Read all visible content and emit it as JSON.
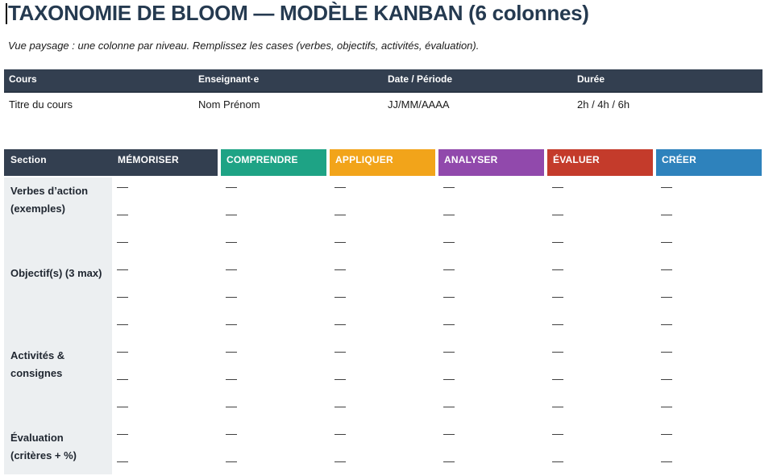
{
  "title": "TAXONOMIE DE BLOOM — MODÈLE KANBAN (6 colonnes)",
  "subtitle": "Vue paysage : une colonne par niveau. Remplissez les cases (verbes, objectifs, activités, évaluation).",
  "info_table": {
    "headers": [
      "Cours",
      "Enseignant·e",
      "Date / Période",
      "Durée"
    ],
    "values": [
      "Titre du cours",
      "Nom Prénom",
      "JJ/MM/AAAA",
      "2h / 4h / 6h"
    ]
  },
  "kanban": {
    "section_header": "Section",
    "levels": [
      {
        "label": "MÉMORISER",
        "color": "#333F50"
      },
      {
        "label": "COMPRENDRE",
        "color": "#1EA385"
      },
      {
        "label": "APPLIQUER",
        "color": "#F2A41A"
      },
      {
        "label": "ANALYSER",
        "color": "#9149AC"
      },
      {
        "label": "ÉVALUER",
        "color": "#C43B2B"
      },
      {
        "label": "CRÉER",
        "color": "#2E82BC"
      }
    ],
    "sections": [
      {
        "label": "Verbes d’action (exemples)",
        "rows": 3
      },
      {
        "label": "Objectif(s) (3 max)",
        "rows": 3
      },
      {
        "label": "Activités & consignes",
        "rows": 3
      },
      {
        "label": "Évaluation (critères + %)",
        "rows": 2
      }
    ],
    "placeholder": "—"
  },
  "colors": {
    "title_text": "#253A50",
    "table_header_bg": "#333F50",
    "section_column_bg": "#ECEFF1"
  }
}
